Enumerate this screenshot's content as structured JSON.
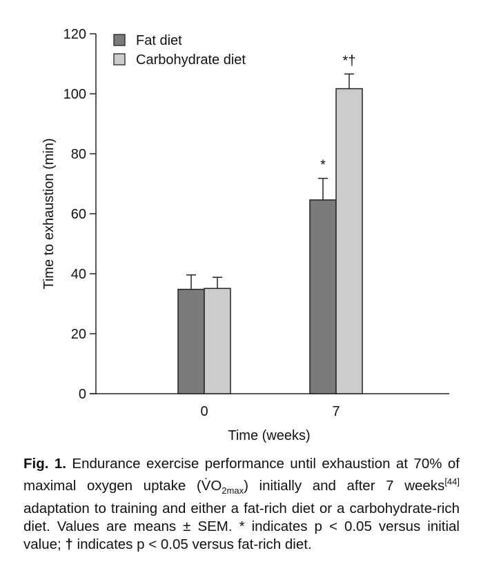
{
  "chart_data": {
    "type": "bar",
    "categories": [
      "0",
      "7"
    ],
    "series": [
      {
        "name": "Fat diet",
        "values": [
          34.8,
          64.6
        ],
        "errors": [
          4.8,
          7.2
        ],
        "color": "#7a7a7a",
        "annotations": [
          "",
          "*"
        ]
      },
      {
        "name": "Carbohydrate diet",
        "values": [
          35.1,
          101.7
        ],
        "errors": [
          3.7,
          4.9
        ],
        "color": "#cccccc",
        "annotations": [
          "",
          "*†"
        ]
      }
    ],
    "xlabel": "Time (weeks)",
    "ylabel": "Time to exhaustion (min)",
    "ylim": [
      0,
      120
    ],
    "yticks": [
      "0",
      "20",
      "40",
      "60",
      "80",
      "100",
      "120"
    ],
    "grid": false,
    "legend": "top-left"
  },
  "caption": {
    "label": "Fig. 1.",
    "text1": " Endurance exercise performance until exhaustion at 70% of maximal oxygen uptake (V̇O",
    "sub": "2max",
    "text2": ") initially and after 7 weeks",
    "ref": "[44]",
    "text3": " adaptation to training and either a fat-rich diet or a carbohydrate-rich diet. Values are means ± SEM. * indicates p < 0.05 versus initial value; ",
    "dagger": "†",
    "text4": " indicates p < 0.05 versus fat-rich diet."
  }
}
